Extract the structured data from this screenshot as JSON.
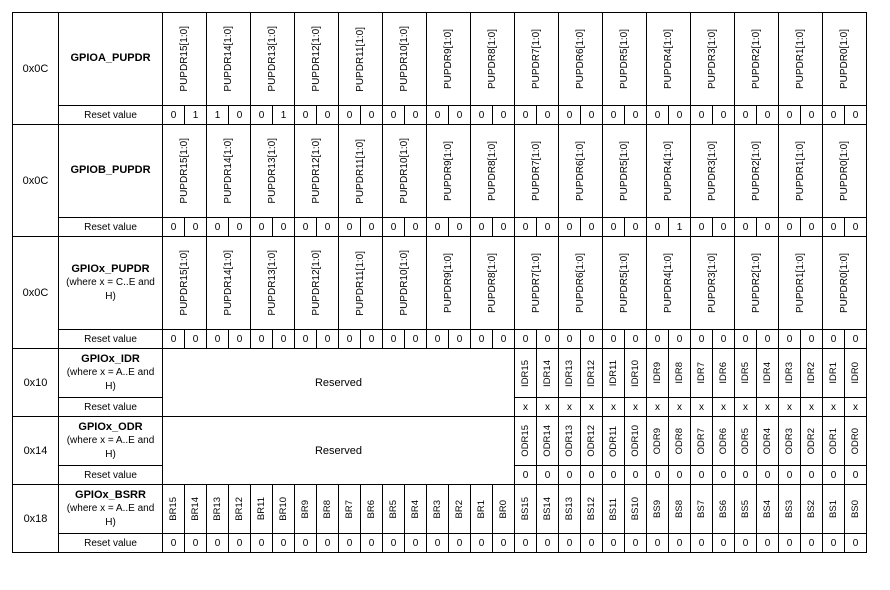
{
  "offsets": {
    "pupdrA": "0x0C",
    "pupdrB": "0x0C",
    "pupdrX": "0x0C",
    "idr": "0x10",
    "odr": "0x14",
    "bsrr": "0x18"
  },
  "names": {
    "pupdrA_name": "GPIOA_PUPDR",
    "pupdrB_name": "GPIOB_PUPDR",
    "pupdrX_name": "GPIOx_PUPDR",
    "pupdrX_sub": "(where x = C..E and H)",
    "idr_name": "GPIOx_IDR",
    "idr_sub": "(where x = A..E and H)",
    "odr_name": "GPIOx_ODR",
    "odr_sub": "(where x = A..E and H)",
    "bsrr_name": "GPIOx_BSRR",
    "bsrr_sub": "(where x = A..E and H)",
    "reset_label": "Reset value",
    "reserved": "Reserved"
  },
  "pupdr_fields": [
    "PUPDR15[1:0]",
    "PUPDR14[1:0]",
    "PUPDR13[1:0]",
    "PUPDR12[1:0]",
    "PUPDR11[1:0]",
    "PUPDR10[1:0]",
    "PUPDR9[1:0]",
    "PUPDR8[1:0]",
    "PUPDR7[1:0]",
    "PUPDR6[1:0]",
    "PUPDR5[1:0]",
    "PUPDR4[1:0]",
    "PUPDR3[1:0]",
    "PUPDR2[1:0]",
    "PUPDR1[1:0]",
    "PUPDR0[1:0]"
  ],
  "idr_fields": [
    "IDR15",
    "IDR14",
    "IDR13",
    "IDR12",
    "IDR11",
    "IDR10",
    "IDR9",
    "IDR8",
    "IDR7",
    "IDR6",
    "IDR5",
    "IDR4",
    "IDR3",
    "IDR2",
    "IDR1",
    "IDR0"
  ],
  "odr_fields": [
    "ODR15",
    "ODR14",
    "ODR13",
    "ODR12",
    "ODR11",
    "ODR10",
    "ODR9",
    "ODR8",
    "ODR7",
    "ODR6",
    "ODR5",
    "ODR4",
    "ODR3",
    "ODR2",
    "ODR1",
    "ODR0"
  ],
  "bsrr_br": [
    "BR15",
    "BR14",
    "BR13",
    "BR12",
    "BR11",
    "BR10",
    "BR9",
    "BR8",
    "BR7",
    "BR6",
    "BR5",
    "BR4",
    "BR3",
    "BR2",
    "BR1",
    "BR0"
  ],
  "bsrr_bs": [
    "BS15",
    "BS14",
    "BS13",
    "BS12",
    "BS11",
    "BS10",
    "BS9",
    "BS8",
    "BS7",
    "BS6",
    "BS5",
    "BS4",
    "BS3",
    "BS2",
    "BS1",
    "BS0"
  ],
  "reset": {
    "pupdrA": [
      "0",
      "1",
      "1",
      "0",
      "0",
      "1",
      "0",
      "0",
      "0",
      "0",
      "0",
      "0",
      "0",
      "0",
      "0",
      "0",
      "0",
      "0",
      "0",
      "0",
      "0",
      "0",
      "0",
      "0",
      "0",
      "0",
      "0",
      "0",
      "0",
      "0",
      "0",
      "0"
    ],
    "pupdrB": [
      "0",
      "0",
      "0",
      "0",
      "0",
      "0",
      "0",
      "0",
      "0",
      "0",
      "0",
      "0",
      "0",
      "0",
      "0",
      "0",
      "0",
      "0",
      "0",
      "0",
      "0",
      "0",
      "0",
      "1",
      "0",
      "0",
      "0",
      "0",
      "0",
      "0",
      "0",
      "0"
    ],
    "pupdrX": [
      "0",
      "0",
      "0",
      "0",
      "0",
      "0",
      "0",
      "0",
      "0",
      "0",
      "0",
      "0",
      "0",
      "0",
      "0",
      "0",
      "0",
      "0",
      "0",
      "0",
      "0",
      "0",
      "0",
      "0",
      "0",
      "0",
      "0",
      "0",
      "0",
      "0",
      "0",
      "0"
    ],
    "idr": [
      "x",
      "x",
      "x",
      "x",
      "x",
      "x",
      "x",
      "x",
      "x",
      "x",
      "x",
      "x",
      "x",
      "x",
      "x",
      "x"
    ],
    "odr": [
      "0",
      "0",
      "0",
      "0",
      "0",
      "0",
      "0",
      "0",
      "0",
      "0",
      "0",
      "0",
      "0",
      "0",
      "0",
      "0"
    ],
    "bsrr": [
      "0",
      "0",
      "0",
      "0",
      "0",
      "0",
      "0",
      "0",
      "0",
      "0",
      "0",
      "0",
      "0",
      "0",
      "0",
      "0",
      "0",
      "0",
      "0",
      "0",
      "0",
      "0",
      "0",
      "0",
      "0",
      "0",
      "0",
      "0",
      "0",
      "0",
      "0",
      "0"
    ]
  },
  "style": {
    "border_color": "#000000",
    "background": "#ffffff",
    "font_family": "Arial",
    "label_fontsize": 10,
    "header_fontsize": 11
  }
}
